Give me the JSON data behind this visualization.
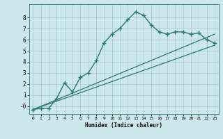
{
  "title": "",
  "xlabel": "Humidex (Indice chaleur)",
  "bg_color": "#cde8ec",
  "grid_color": "#aecdd4",
  "line_color": "#2a7a6e",
  "xlim": [
    -0.5,
    23.5
  ],
  "ylim": [
    -0.7,
    9.2
  ],
  "yticks": [
    0,
    1,
    2,
    3,
    4,
    5,
    6,
    7,
    8
  ],
  "ytick_labels": [
    "-0",
    "1",
    "2",
    "3",
    "4",
    "5",
    "6",
    "7",
    "8"
  ],
  "xticks": [
    0,
    1,
    2,
    3,
    4,
    5,
    6,
    7,
    8,
    9,
    10,
    11,
    12,
    13,
    14,
    15,
    16,
    17,
    18,
    19,
    20,
    21,
    22,
    23
  ],
  "curve1_x": [
    0,
    1,
    2,
    3,
    4,
    5,
    6,
    7,
    8,
    9,
    10,
    11,
    12,
    13,
    14,
    15,
    16,
    17,
    18,
    19,
    20,
    21,
    22,
    23
  ],
  "curve1_y": [
    -0.3,
    -0.2,
    -0.2,
    0.7,
    2.1,
    1.3,
    2.6,
    3.0,
    4.1,
    5.7,
    6.5,
    7.0,
    7.8,
    8.5,
    8.2,
    7.3,
    6.7,
    6.5,
    6.7,
    6.7,
    6.5,
    6.6,
    6.0,
    5.7
  ],
  "line2_x": [
    0,
    23
  ],
  "line2_y": [
    -0.3,
    6.5
  ],
  "line3_x": [
    0,
    23
  ],
  "line3_y": [
    -0.3,
    5.5
  ]
}
